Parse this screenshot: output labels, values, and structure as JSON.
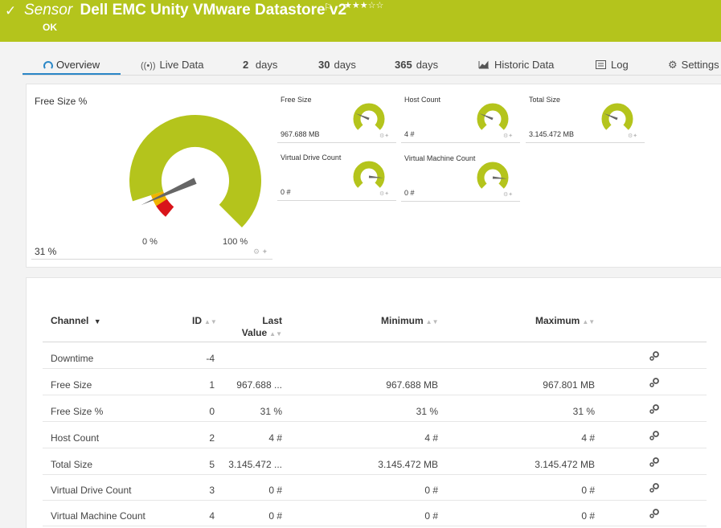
{
  "header": {
    "kind": "Sensor",
    "name": "Dell EMC Unity VMware Datastore v2",
    "stars": "★★★☆☆",
    "status": "OK",
    "bg_color": "#b4c41c"
  },
  "tabs": [
    {
      "label": "Overview",
      "icon": "gauge-icon"
    },
    {
      "label": "Live Data",
      "icon": "live-data-icon"
    },
    {
      "num": "2",
      "label": "days"
    },
    {
      "num": "30",
      "label": "days"
    },
    {
      "num": "365",
      "label": "days"
    },
    {
      "label": "Historic Data",
      "icon": "chart-icon"
    },
    {
      "label": "Log",
      "icon": "log-icon"
    },
    {
      "label": "Settings",
      "icon": "gear-icon"
    }
  ],
  "primary_gauge": {
    "label": "Free Size %",
    "value": "31 %",
    "min_label": "0 %",
    "max_label": "100 %",
    "fraction": 0.31
  },
  "mini_gauges": [
    {
      "label": "Free Size",
      "value": "967.688 MB",
      "fraction": 0.25
    },
    {
      "label": "Host Count",
      "value": "4 #",
      "fraction": 0.25
    },
    {
      "label": "Total Size",
      "value": "3.145.472 MB",
      "fraction": 0.25
    },
    {
      "label": "Virtual Drive Count",
      "value": "0 #",
      "fraction": 0.85
    },
    {
      "label": "Virtual Machine Count",
      "value": "0 #",
      "fraction": 0.85
    }
  ],
  "table": {
    "columns": {
      "channel": "Channel",
      "id": "ID",
      "last_value_1": "Last",
      "last_value_2": "Value",
      "minimum": "Minimum",
      "maximum": "Maximum"
    },
    "rows": [
      {
        "channel": "Downtime",
        "id": "-4",
        "last": "",
        "min": "",
        "max": ""
      },
      {
        "channel": "Free Size",
        "id": "1",
        "last": "967.688 ...",
        "min": "967.688 MB",
        "max": "967.801 MB"
      },
      {
        "channel": "Free Size %",
        "id": "0",
        "last": "31 %",
        "min": "31 %",
        "max": "31 %"
      },
      {
        "channel": "Host Count",
        "id": "2",
        "last": "4 #",
        "min": "4 #",
        "max": "4 #"
      },
      {
        "channel": "Total Size",
        "id": "5",
        "last": "3.145.472 ...",
        "min": "3.145.472 MB",
        "max": "3.145.472 MB"
      },
      {
        "channel": "Virtual Drive Count",
        "id": "3",
        "last": "0 #",
        "min": "0 #",
        "max": "0 #"
      },
      {
        "channel": "Virtual Machine Count",
        "id": "4",
        "last": "0 #",
        "min": "0 #",
        "max": "0 #"
      }
    ]
  },
  "colors": {
    "ok": "#b4c41c",
    "warning": "#f0b400",
    "error": "#d9141a",
    "needle": "#666666",
    "accent": "#2a87c7"
  }
}
